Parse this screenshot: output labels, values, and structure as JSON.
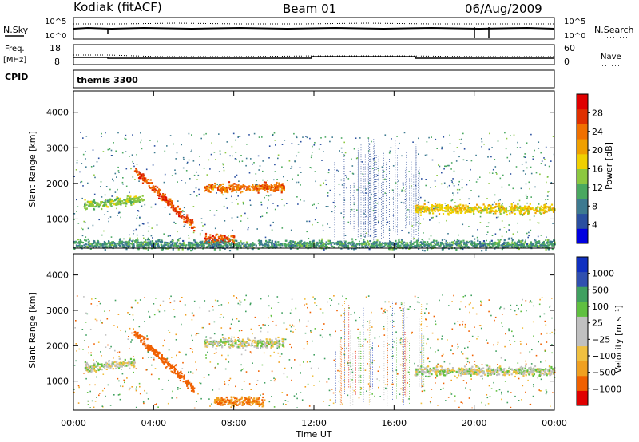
{
  "header": {
    "station": "Kodiak (fitACF)",
    "beam": "Beam 01",
    "date": "06/Aug/2009"
  },
  "top_panels": {
    "nsky_label": "N.Sky",
    "nsky_ticks": [
      "10^5",
      "10^0"
    ],
    "nsearch_label": "N.Search",
    "nsearch_ticks": [
      "10^5",
      "10^0"
    ],
    "freq_label_1": "Freq.",
    "freq_label_2": "[MHz]",
    "freq_ticks": [
      "18",
      "8"
    ],
    "nave_label": "Nave",
    "nave_ticks": [
      "60",
      "0"
    ],
    "cpid_label": "CPID",
    "cpid_value": "themis 3300"
  },
  "colors": {
    "power_scale": [
      "#0000e0",
      "#2a4fa0",
      "#3d7a90",
      "#4aa860",
      "#8cc840",
      "#f0d000",
      "#f0a000",
      "#f07000",
      "#e03000",
      "#e00000"
    ],
    "velocity_scale": [
      "#e00000",
      "#f06000",
      "#f0a020",
      "#f0c040",
      "#c0c0c0",
      "#c0c0c0",
      "#60c040",
      "#40a060",
      "#3050b0",
      "#1030c0"
    ]
  },
  "chart_data": [
    {
      "type": "heatmap",
      "title": "Power",
      "ylabel": "Slant Range [km]",
      "y_ticks": [
        "1000",
        "2000",
        "3000",
        "4000"
      ],
      "ylim": [
        180,
        4600
      ],
      "xlim": [
        0,
        24
      ],
      "colorbar": {
        "label": "Power [dB]",
        "ticks": [
          "4",
          "8",
          "12",
          "16",
          "20",
          "24",
          "28"
        ],
        "range": [
          0,
          32
        ]
      },
      "features": [
        {
          "time_start": 0.5,
          "time_end": 3.5,
          "range_km": 1400,
          "power_db": 14
        },
        {
          "time_start": 3.0,
          "time_end": 6.0,
          "range_km": 1600,
          "power_db": 26
        },
        {
          "time_start": 6.5,
          "time_end": 10.5,
          "range_km": 1900,
          "power_db": 24
        },
        {
          "time_start": 6.5,
          "time_end": 8.0,
          "range_km": 450,
          "power_db": 26
        },
        {
          "time_start": 17.0,
          "time_end": 24.0,
          "range_km": 1300,
          "power_db": 18
        },
        {
          "time_start": 0.0,
          "time_end": 24.0,
          "range_km": 300,
          "power_db": 10
        }
      ]
    },
    {
      "type": "heatmap",
      "title": "Velocity",
      "ylabel": "Slant Range [km]",
      "xlabel": "Time UT",
      "x_ticks": [
        "00:00",
        "04:00",
        "08:00",
        "12:00",
        "16:00",
        "20:00",
        "00:00"
      ],
      "y_ticks": [
        "1000",
        "2000",
        "3000",
        "4000"
      ],
      "ylim": [
        180,
        4600
      ],
      "xlim": [
        0,
        24
      ],
      "colorbar": {
        "label": "Velocity [m s⁻¹]",
        "ticks": [
          "1000",
          "500",
          "100",
          "25",
          "−25",
          "−100",
          "−500",
          "−1000"
        ]
      },
      "features": [
        {
          "time_start": 0.5,
          "time_end": 3.0,
          "range_km": 1400,
          "velocity": 0
        },
        {
          "time_start": 3.0,
          "time_end": 6.0,
          "range_km": 1600,
          "velocity": -300
        },
        {
          "time_start": 6.5,
          "time_end": 10.5,
          "range_km": 2100,
          "velocity": 0
        },
        {
          "time_start": 7.0,
          "time_end": 9.5,
          "range_km": 450,
          "velocity": -200
        },
        {
          "time_start": 17.0,
          "time_end": 24.0,
          "range_km": 1300,
          "velocity": 0
        }
      ]
    }
  ]
}
